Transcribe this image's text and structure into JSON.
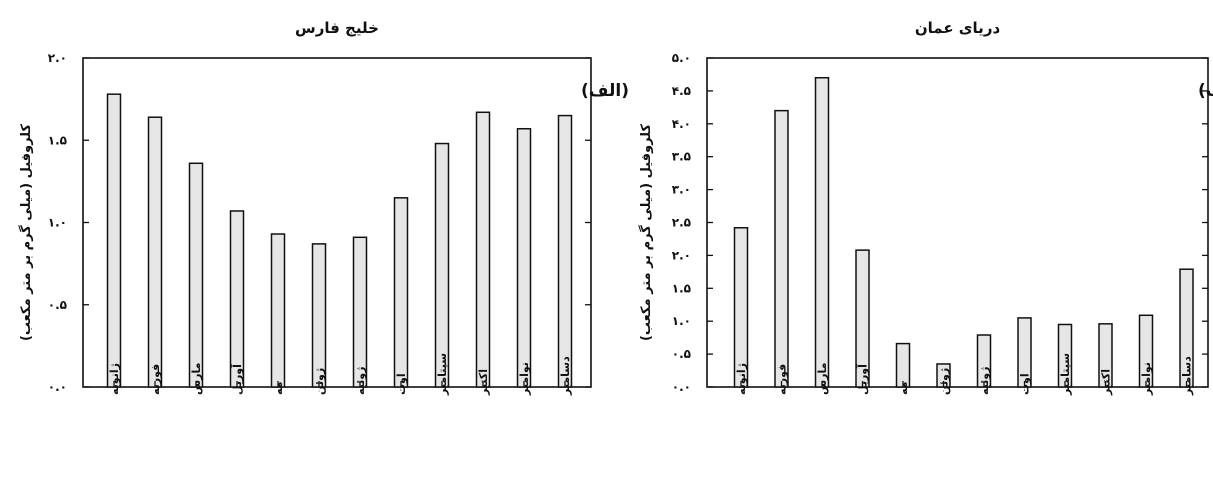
{
  "chart_data": [
    {
      "type": "bar",
      "title": "خلیج فارس",
      "panel_label": "(الف)",
      "ylabel": "کلروفیل (میلی گرم بر متر مکعب)",
      "ylim": [
        0,
        2.0
      ],
      "yticks": [
        "۰.۰",
        "۰.۵",
        "۱.۰",
        "۱.۵",
        "۲.۰"
      ],
      "grid": false,
      "categories": [
        "ژانویه",
        "فوریه",
        "مارس",
        "آوریل",
        "مه",
        "ژوئن",
        "ژوئیه",
        "اوت",
        "سپتامبر",
        "اکتبر",
        "نوامبر",
        "دسامبر"
      ],
      "values": [
        1.78,
        1.64,
        1.36,
        1.07,
        0.93,
        0.87,
        0.91,
        1.15,
        1.48,
        1.67,
        1.57,
        1.65
      ],
      "bar_color": "#e6e6e6"
    },
    {
      "type": "bar",
      "title": "دریای عمان",
      "panel_label": "(ب)",
      "ylabel": "کلروفیل (میلی گرم بر متر مکعب)",
      "ylim": [
        0,
        5.0
      ],
      "yticks": [
        "۰.۰",
        "۰.۵",
        "۱.۰",
        "۱.۵",
        "۲.۰",
        "۲.۵",
        "۳.۰",
        "۳.۵",
        "۴.۰",
        "۴.۵",
        "۵.۰"
      ],
      "grid": false,
      "categories": [
        "ژانویه",
        "فوریه",
        "مارس",
        "آوریل",
        "مه",
        "ژوئن",
        "ژوئیه",
        "اوت",
        "سپتامبر",
        "اکتبر",
        "نوامبر",
        "دسامبر"
      ],
      "values": [
        2.42,
        4.2,
        4.7,
        2.08,
        0.66,
        0.35,
        0.79,
        1.05,
        0.95,
        0.96,
        1.09,
        1.79
      ],
      "bar_color": "#e6e6e6"
    }
  ]
}
